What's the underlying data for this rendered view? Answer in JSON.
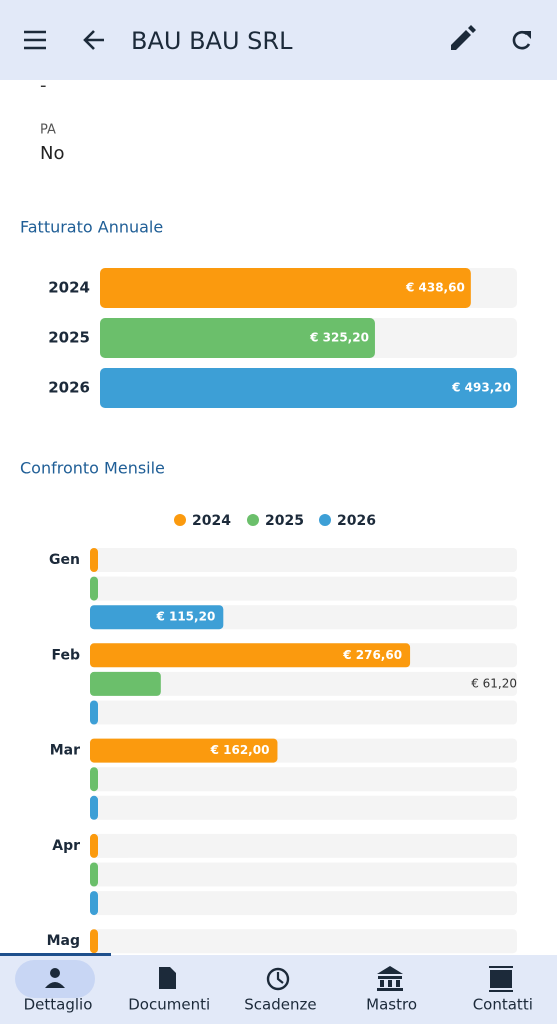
{
  "header": {
    "title": "BAU BAU SRL"
  },
  "fields": [
    {
      "value": "-"
    },
    {
      "label": "PA",
      "value": "No"
    }
  ],
  "chart_data": [
    {
      "type": "bar",
      "title": "Fatturato Annuale",
      "categories": [
        "2024",
        "2025",
        "2026"
      ],
      "values": [
        438.6,
        325.2,
        493.2
      ],
      "value_labels": [
        "€ 438,60",
        "€ 325,20",
        "€ 493,20"
      ],
      "colors": [
        "#fb9a0e",
        "#6bbf6b",
        "#3d9fd6"
      ],
      "xlim": [
        0,
        493.2
      ]
    },
    {
      "type": "grouped-bar",
      "title": "Confronto Mensile",
      "categories": [
        "Gen",
        "Feb",
        "Mar",
        "Apr",
        "Mag"
      ],
      "series": [
        {
          "name": "2024",
          "color": "#fb9a0e",
          "values": [
            0,
            276.6,
            162,
            0,
            0
          ],
          "value_labels": [
            null,
            "€ 276,60",
            "€ 162,00",
            null,
            null
          ]
        },
        {
          "name": "2025",
          "color": "#6bbf6b",
          "values": [
            0,
            61.2,
            0,
            0,
            null
          ],
          "value_labels": [
            null,
            "€ 61,20",
            null,
            null,
            null
          ]
        },
        {
          "name": "2026",
          "color": "#3d9fd6",
          "values": [
            115.2,
            0,
            0,
            0,
            null
          ],
          "value_labels": [
            "€ 115,20",
            null,
            null,
            null,
            null
          ]
        }
      ],
      "xlim": [
        0,
        369
      ]
    }
  ],
  "nav": [
    {
      "label": "Dettaglio"
    },
    {
      "label": "Documenti"
    },
    {
      "label": "Scadenze"
    },
    {
      "label": "Mastro"
    },
    {
      "label": "Contatti"
    }
  ]
}
